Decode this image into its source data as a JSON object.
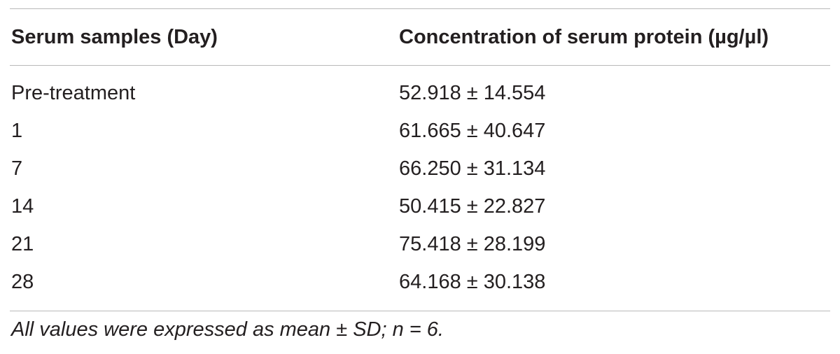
{
  "table": {
    "headers": [
      "Serum samples (Day)",
      "Concentration of serum protein (µg/µl)"
    ],
    "rows": [
      {
        "day": "Pre-treatment",
        "concentration": "52.918 ± 14.554"
      },
      {
        "day": "1",
        "concentration": "61.665 ± 40.647"
      },
      {
        "day": "7",
        "concentration": "66.250 ± 31.134"
      },
      {
        "day": "14",
        "concentration": "50.415 ± 22.827"
      },
      {
        "day": "21",
        "concentration": "75.418 ± 28.199"
      },
      {
        "day": "28",
        "concentration": "64.168 ± 30.138"
      }
    ],
    "footnote": "All values were expressed as mean ± SD; n = 6."
  }
}
